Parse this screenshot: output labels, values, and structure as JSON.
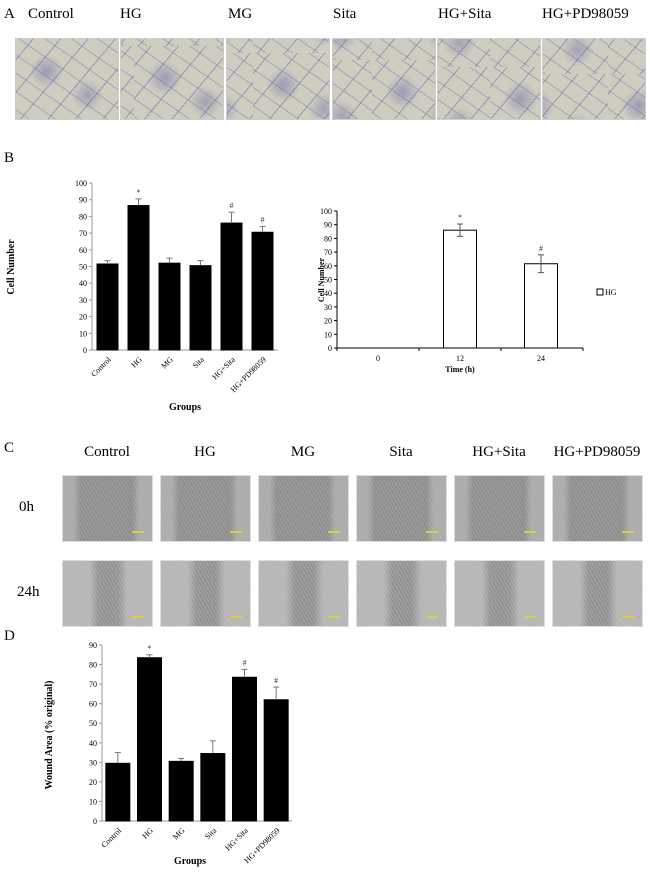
{
  "panels": {
    "A": {
      "letter": "A",
      "groups": [
        "Control",
        "HG",
        "MG",
        "Sita",
        "HG+Sita",
        "HG+PD98059"
      ],
      "image_type": "transwell-migration-micrograph"
    },
    "B": {
      "letter": "B"
    },
    "C": {
      "letter": "C",
      "groups": [
        "Control",
        "HG",
        "MG",
        "Sita",
        "HG+Sita",
        "HG+PD98059"
      ],
      "rows": [
        "0h",
        "24h"
      ],
      "image_type": "wound-healing-micrograph"
    },
    "D": {
      "letter": "D"
    }
  },
  "chart_data": [
    {
      "type": "bar",
      "panel": "B-left",
      "categories": [
        "Control",
        "HG",
        "MG",
        "Sita",
        "HG+Sita",
        "HG+PD98059"
      ],
      "values": [
        51.5,
        86.5,
        52,
        50.5,
        76,
        70.5
      ],
      "errors": [
        2,
        4,
        3,
        3,
        6.5,
        3.5
      ],
      "annotations": [
        "",
        "*",
        "",
        "",
        "#",
        "#"
      ],
      "xlabel": "Groups",
      "ylabel": "Cell  Number",
      "ylim": [
        0,
        100
      ],
      "yticks": [
        "0",
        "10",
        "20",
        "30",
        "40",
        "50",
        "60",
        "70",
        "80",
        "90",
        "100"
      ],
      "bar_color": "#000000",
      "grid": false
    },
    {
      "type": "bar",
      "panel": "B-right",
      "categories": [
        "0",
        "12",
        "24"
      ],
      "series": [
        {
          "name": "HG",
          "values": [
            0,
            86,
            61.5
          ],
          "errors": [
            0,
            4.5,
            6.5
          ]
        }
      ],
      "annotations": [
        "",
        "*",
        "#"
      ],
      "xlabel": "Time (h)",
      "ylabel": "Cell Number",
      "ylim": [
        0,
        100
      ],
      "yticks": [
        "0",
        "10",
        "20",
        "30",
        "40",
        "50",
        "60",
        "70",
        "80",
        "90",
        "100"
      ],
      "bar_color": "#ffffff",
      "legend": "right",
      "grid": false
    },
    {
      "type": "bar",
      "panel": "D",
      "categories": [
        "Control",
        "HG",
        "MG",
        "Sita",
        "HG+Sita",
        "HG+PD98059"
      ],
      "values": [
        29.5,
        83.5,
        30.5,
        34.5,
        73.5,
        62
      ],
      "errors": [
        5.5,
        1.5,
        1.5,
        6.5,
        4,
        6.5
      ],
      "annotations": [
        "",
        "*",
        "",
        "",
        "#",
        "#"
      ],
      "xlabel": "Groups",
      "ylabel": "Wound Area (% original)",
      "ylim": [
        0,
        90
      ],
      "yticks": [
        "0",
        "10",
        "20",
        "30",
        "40",
        "50",
        "60",
        "70",
        "80",
        "90"
      ],
      "bar_color": "#000000",
      "grid": false
    }
  ]
}
